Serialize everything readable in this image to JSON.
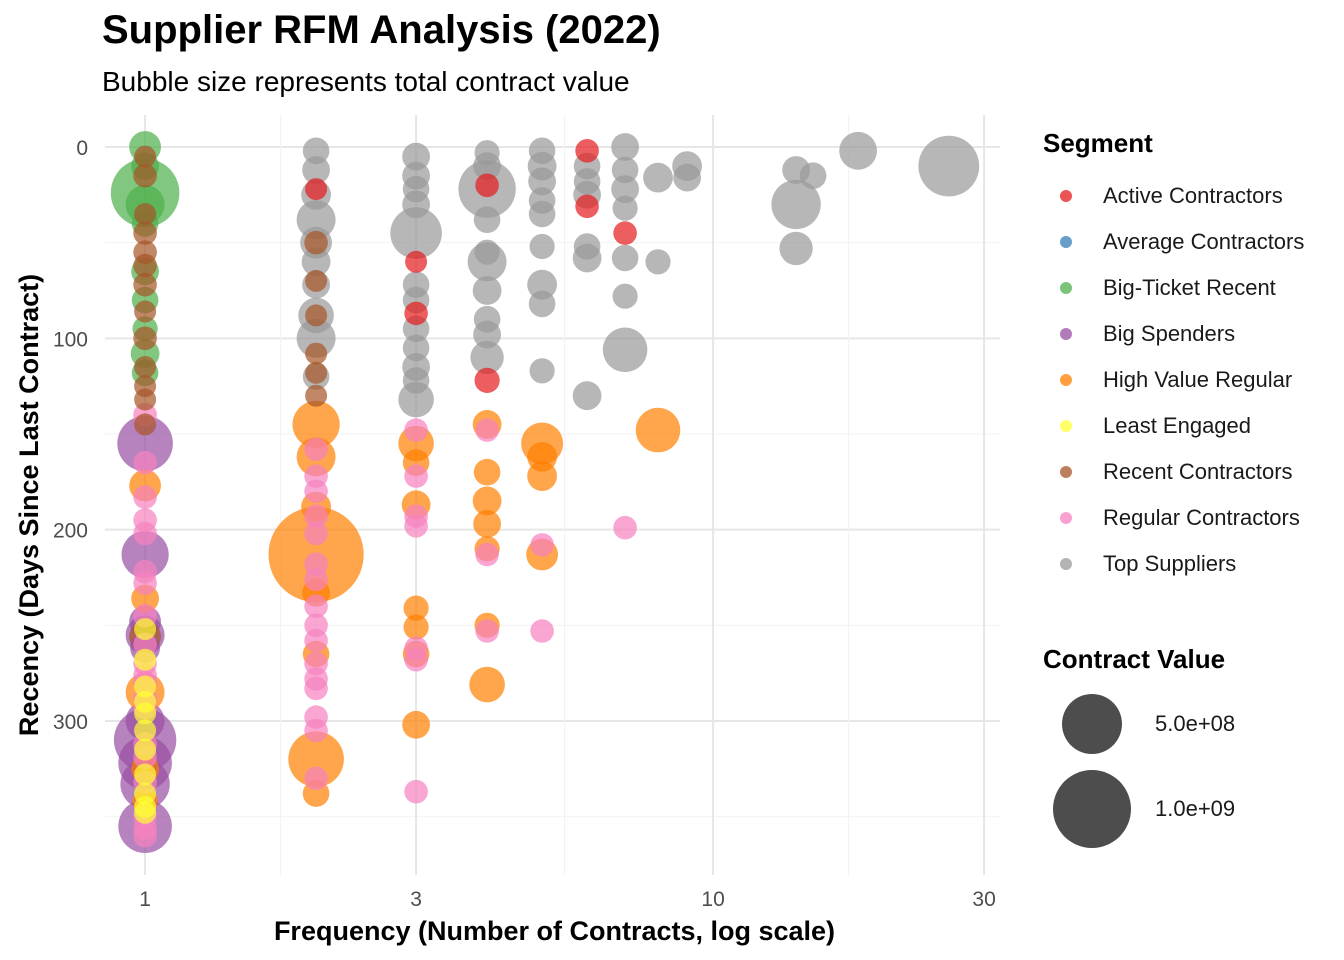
{
  "chart_data": {
    "type": "scatter",
    "title": "Supplier RFM Analysis (2022)",
    "subtitle": "Bubble size represents total contract value",
    "xlabel": "Frequency (Number of Contracts, log scale)",
    "ylabel": "Recency (Days Since Last Contract)",
    "x_scale": "log",
    "xlim": [
      0.85,
      32
    ],
    "ylim": [
      0,
      380
    ],
    "y_reversed": true,
    "x_ticks": [
      1,
      3,
      10,
      30
    ],
    "y_ticks": [
      0,
      100,
      200,
      300
    ],
    "grid": true,
    "legend_position": "right",
    "segment_legend_title": "Segment",
    "size_legend_title": "Contract Value",
    "size_legend": [
      {
        "label": "5.0e+08",
        "value": 500000000
      },
      {
        "label": "1.0e+09",
        "value": 1000000000
      }
    ],
    "series": [
      {
        "name": "Active Contractors",
        "color": "#E41A1C",
        "points": [
          [
            6,
            2,
            0.03
          ],
          [
            7,
            45,
            0.03
          ],
          [
            4,
            20,
            0.03
          ],
          [
            3,
            87,
            0.03
          ],
          [
            4,
            122,
            0.04
          ],
          [
            2,
            22,
            0.02
          ],
          [
            6,
            31,
            0.03
          ],
          [
            3,
            60,
            0.02
          ]
        ]
      },
      {
        "name": "Average Contractors",
        "color": "#377EB8",
        "points": []
      },
      {
        "name": "Big-Ticket Recent",
        "color": "#4DAF4A",
        "points": [
          [
            1,
            0,
            0.1
          ],
          [
            1,
            10,
            0.06
          ],
          [
            1,
            24,
            0.95
          ],
          [
            1,
            30,
            0.2
          ],
          [
            1,
            40,
            0.05
          ],
          [
            1,
            65,
            0.06
          ],
          [
            1,
            80,
            0.05
          ],
          [
            1,
            95,
            0.04
          ],
          [
            1,
            108,
            0.07
          ],
          [
            1,
            118,
            0.05
          ]
        ]
      },
      {
        "name": "Big Spenders",
        "color": "#984EA3",
        "points": [
          [
            1,
            155,
            0.55
          ],
          [
            1,
            213,
            0.35
          ],
          [
            1,
            248,
            0.1
          ],
          [
            1,
            255,
            0.2
          ],
          [
            1,
            310,
            0.75
          ],
          [
            1,
            322,
            0.5
          ],
          [
            1,
            333,
            0.4
          ],
          [
            1,
            355,
            0.5
          ],
          [
            1,
            262,
            0.08
          ],
          [
            1,
            300,
            0.2
          ]
        ]
      },
      {
        "name": "High Value Regular",
        "color": "#FF7F00",
        "points": [
          [
            2,
            145,
            0.35
          ],
          [
            2,
            162,
            0.2
          ],
          [
            2,
            213,
            2.1
          ],
          [
            2,
            233,
            0.06
          ],
          [
            2,
            320,
            0.55
          ],
          [
            2,
            338,
            0.05
          ],
          [
            2,
            188,
            0.08
          ],
          [
            2,
            265,
            0.05
          ],
          [
            3,
            155,
            0.15
          ],
          [
            3,
            165,
            0.05
          ],
          [
            3,
            187,
            0.07
          ],
          [
            3,
            241,
            0.04
          ],
          [
            3,
            251,
            0.04
          ],
          [
            3,
            265,
            0.05
          ],
          [
            3,
            302,
            0.06
          ],
          [
            4,
            145,
            0.07
          ],
          [
            4,
            170,
            0.05
          ],
          [
            4,
            185,
            0.07
          ],
          [
            4,
            197,
            0.06
          ],
          [
            4,
            210,
            0.04
          ],
          [
            4,
            250,
            0.04
          ],
          [
            4,
            281,
            0.15
          ],
          [
            5,
            155,
            0.25
          ],
          [
            5,
            162,
            0.08
          ],
          [
            5,
            172,
            0.08
          ],
          [
            5,
            213,
            0.1
          ],
          [
            8,
            148,
            0.3
          ],
          [
            1,
            177,
            0.1
          ],
          [
            1,
            236,
            0.06
          ],
          [
            1,
            285,
            0.2
          ],
          [
            1,
            325,
            0.06
          ],
          [
            1,
            342,
            0.04
          ]
        ]
      },
      {
        "name": "Least Engaged",
        "color": "#FFFF33",
        "points": [
          [
            1,
            252,
            0.02
          ],
          [
            1,
            268,
            0.02
          ],
          [
            1,
            282,
            0.02
          ],
          [
            1,
            290,
            0.02
          ],
          [
            1,
            296,
            0.02
          ],
          [
            1,
            305,
            0.02
          ],
          [
            1,
            315,
            0.02
          ],
          [
            1,
            328,
            0.02
          ],
          [
            1,
            338,
            0.02
          ],
          [
            1,
            345,
            0.02
          ],
          [
            1,
            348,
            0.02
          ]
        ]
      },
      {
        "name": "Recent Contractors",
        "color": "#A65628",
        "points": [
          [
            1,
            5,
            0.02
          ],
          [
            1,
            15,
            0.03
          ],
          [
            1,
            35,
            0.02
          ],
          [
            1,
            45,
            0.03
          ],
          [
            1,
            55,
            0.03
          ],
          [
            1,
            62,
            0.03
          ],
          [
            1,
            72,
            0.03
          ],
          [
            1,
            86,
            0.02
          ],
          [
            1,
            100,
            0.03
          ],
          [
            1,
            115,
            0.02
          ],
          [
            1,
            125,
            0.02
          ],
          [
            1,
            132,
            0.02
          ],
          [
            2,
            50,
            0.03
          ],
          [
            2,
            70,
            0.02
          ],
          [
            2,
            88,
            0.02
          ],
          [
            2,
            108,
            0.02
          ],
          [
            2,
            118,
            0.02
          ],
          [
            2,
            130,
            0.02
          ],
          [
            1,
            256,
            0.1
          ],
          [
            1,
            145,
            0.02
          ]
        ]
      },
      {
        "name": "Regular Contractors",
        "color": "#F781BF",
        "points": [
          [
            1,
            140,
            0.03
          ],
          [
            1,
            165,
            0.03
          ],
          [
            1,
            183,
            0.03
          ],
          [
            1,
            195,
            0.03
          ],
          [
            1,
            202,
            0.03
          ],
          [
            1,
            222,
            0.03
          ],
          [
            1,
            228,
            0.03
          ],
          [
            1,
            245,
            0.03
          ],
          [
            1,
            260,
            0.03
          ],
          [
            1,
            270,
            0.03
          ],
          [
            1,
            276,
            0.03
          ],
          [
            1,
            280,
            0.03
          ],
          [
            1,
            288,
            0.03
          ],
          [
            1,
            293,
            0.03
          ],
          [
            1,
            312,
            0.03
          ],
          [
            1,
            319,
            0.03
          ],
          [
            1,
            332,
            0.03
          ],
          [
            1,
            350,
            0.03
          ],
          [
            1,
            356,
            0.03
          ],
          [
            1,
            360,
            0.03
          ],
          [
            2,
            158,
            0.03
          ],
          [
            2,
            172,
            0.03
          ],
          [
            2,
            180,
            0.03
          ],
          [
            2,
            193,
            0.03
          ],
          [
            2,
            202,
            0.03
          ],
          [
            2,
            218,
            0.03
          ],
          [
            2,
            226,
            0.03
          ],
          [
            2,
            240,
            0.03
          ],
          [
            2,
            250,
            0.03
          ],
          [
            2,
            258,
            0.03
          ],
          [
            2,
            270,
            0.03
          ],
          [
            2,
            278,
            0.03
          ],
          [
            2,
            283,
            0.03
          ],
          [
            2,
            298,
            0.03
          ],
          [
            2,
            305,
            0.03
          ],
          [
            2,
            330,
            0.03
          ],
          [
            3,
            148,
            0.03
          ],
          [
            3,
            172,
            0.03
          ],
          [
            3,
            193,
            0.03
          ],
          [
            3,
            198,
            0.03
          ],
          [
            3,
            262,
            0.03
          ],
          [
            3,
            268,
            0.03
          ],
          [
            3,
            337,
            0.03
          ],
          [
            4,
            148,
            0.03
          ],
          [
            4,
            213,
            0.03
          ],
          [
            4,
            253,
            0.03
          ],
          [
            5,
            208,
            0.03
          ],
          [
            5,
            253,
            0.03
          ],
          [
            7,
            199,
            0.03
          ]
        ]
      },
      {
        "name": "Top Suppliers",
        "color": "#999999",
        "points": [
          [
            2,
            2,
            0.05
          ],
          [
            2,
            12,
            0.06
          ],
          [
            2,
            25,
            0.08
          ],
          [
            2,
            38,
            0.2
          ],
          [
            2,
            50,
            0.1
          ],
          [
            2,
            60,
            0.07
          ],
          [
            2,
            72,
            0.06
          ],
          [
            2,
            88,
            0.15
          ],
          [
            2,
            100,
            0.2
          ],
          [
            2,
            120,
            0.05
          ],
          [
            3,
            5,
            0.06
          ],
          [
            3,
            15,
            0.06
          ],
          [
            3,
            22,
            0.05
          ],
          [
            3,
            30,
            0.06
          ],
          [
            3,
            45,
            0.45
          ],
          [
            3,
            72,
            0.05
          ],
          [
            3,
            80,
            0.05
          ],
          [
            3,
            95,
            0.05
          ],
          [
            3,
            105,
            0.05
          ],
          [
            3,
            115,
            0.06
          ],
          [
            3,
            122,
            0.05
          ],
          [
            3,
            132,
            0.15
          ],
          [
            4,
            3,
            0.04
          ],
          [
            4,
            10,
            0.06
          ],
          [
            4,
            22,
            0.6
          ],
          [
            4,
            38,
            0.05
          ],
          [
            4,
            55,
            0.04
          ],
          [
            4,
            60,
            0.2
          ],
          [
            4,
            75,
            0.07
          ],
          [
            4,
            90,
            0.05
          ],
          [
            4,
            98,
            0.06
          ],
          [
            4,
            110,
            0.12
          ],
          [
            5,
            2,
            0.05
          ],
          [
            5,
            10,
            0.07
          ],
          [
            5,
            18,
            0.06
          ],
          [
            5,
            28,
            0.05
          ],
          [
            5,
            35,
            0.05
          ],
          [
            5,
            52,
            0.04
          ],
          [
            5,
            72,
            0.08
          ],
          [
            5,
            82,
            0.05
          ],
          [
            5,
            117,
            0.04
          ],
          [
            6,
            10,
            0.05
          ],
          [
            6,
            18,
            0.05
          ],
          [
            6,
            25,
            0.06
          ],
          [
            6,
            52,
            0.05
          ],
          [
            6,
            58,
            0.07
          ],
          [
            6,
            130,
            0.07
          ],
          [
            7,
            0,
            0.06
          ],
          [
            7,
            12,
            0.05
          ],
          [
            7,
            22,
            0.06
          ],
          [
            7,
            32,
            0.04
          ],
          [
            7,
            58,
            0.05
          ],
          [
            7,
            78,
            0.04
          ],
          [
            7,
            106,
            0.3
          ],
          [
            8,
            16,
            0.08
          ],
          [
            8,
            60,
            0.04
          ],
          [
            9,
            10,
            0.08
          ],
          [
            9,
            16,
            0.06
          ],
          [
            14,
            12,
            0.06
          ],
          [
            14,
            30,
            0.4
          ],
          [
            14,
            53,
            0.12
          ],
          [
            15,
            15,
            0.05
          ],
          [
            18,
            2,
            0.18
          ],
          [
            26,
            10,
            0.7
          ]
        ]
      }
    ]
  }
}
